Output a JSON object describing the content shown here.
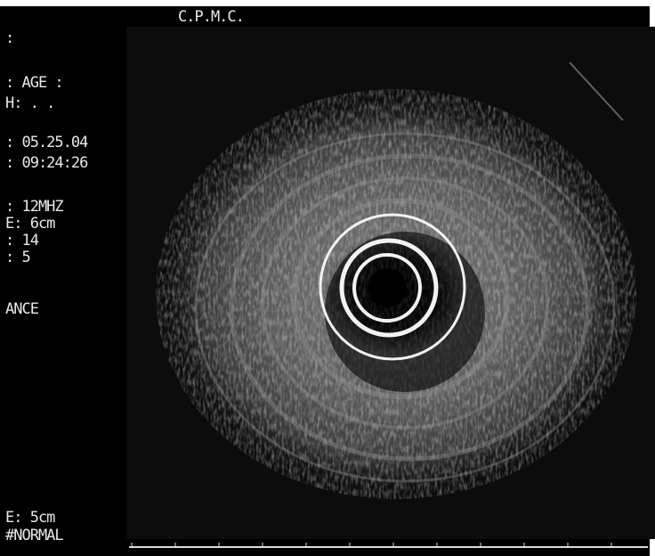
{
  "header": {
    "title": "C.P.M.C."
  },
  "left_panel": {
    "lines": [
      ":",
      ": AGE :",
      "H:  .  .",
      ": 05.25.04",
      ": 09:24:26",
      ": 12MHZ",
      "E:  6cm",
      ": 14",
      ":  5",
      "ANCE",
      "E: 5cm",
      "#NORMAL"
    ]
  }
}
